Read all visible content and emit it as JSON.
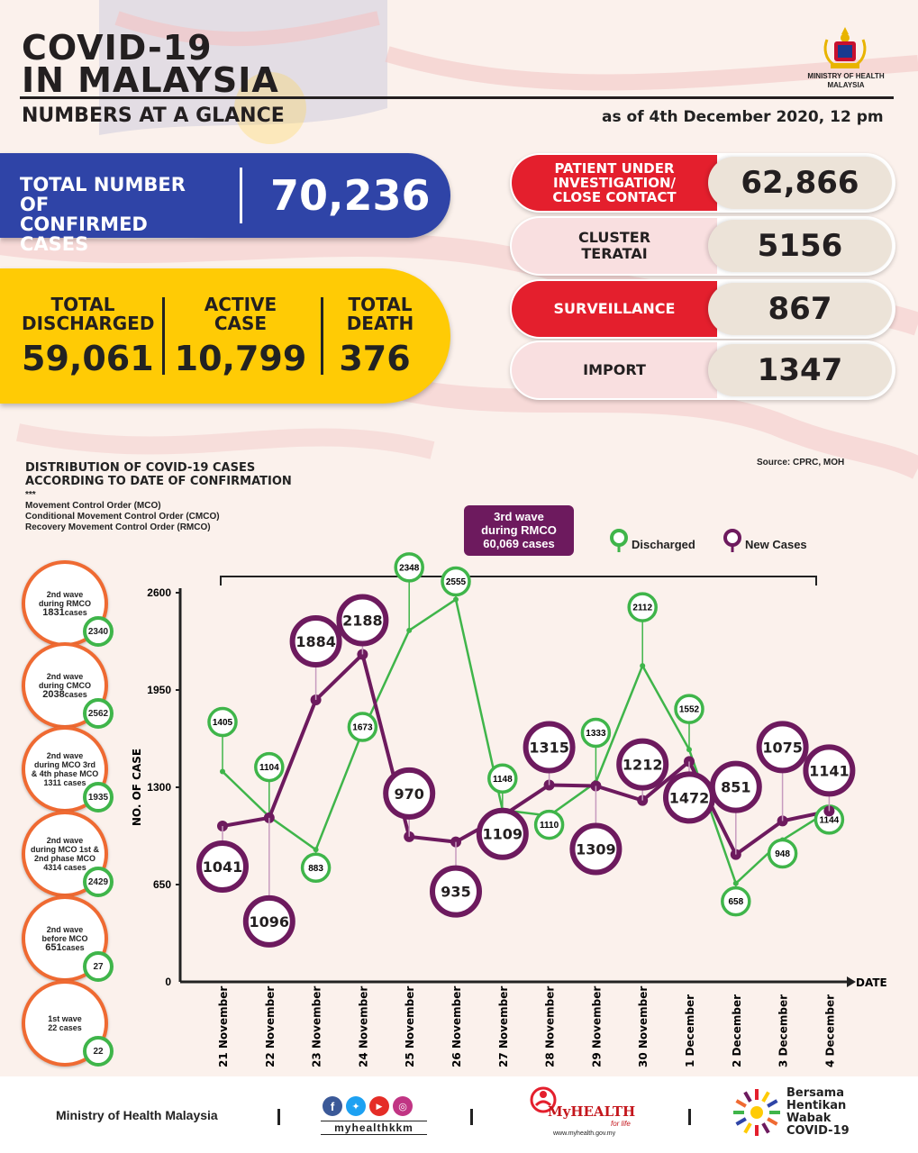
{
  "header": {
    "title_line1": "COVID-19",
    "title_line2": "IN MALAYSIA",
    "subtitle": "NUMBERS AT A GLANCE",
    "date": "as of 4th December 2020, 12 pm",
    "ministry_line1": "MINISTRY OF HEALTH",
    "ministry_line2": "MALAYSIA"
  },
  "totals": {
    "confirmed_label_1": "TOTAL NUMBER OF",
    "confirmed_label_2": "CONFIRMED CASES",
    "confirmed_value": "70,236",
    "discharged_label_1": "TOTAL",
    "discharged_label_2": "DISCHARGED",
    "discharged_value": "59,061",
    "active_label_1": "ACTIVE",
    "active_label_2": "CASE",
    "active_value": "10,799",
    "death_label_1": "TOTAL",
    "death_label_2": "DEATH",
    "death_value": "376"
  },
  "categories": [
    {
      "label_1": "PATIENT UNDER",
      "label_2": "INVESTIGATION/",
      "label_3": "CLOSE CONTACT",
      "value": "62,866"
    },
    {
      "label_1": "CLUSTER",
      "label_2": "TERATAI",
      "label_3": "",
      "value": "5156"
    },
    {
      "label_1": "SURVEILLANCE",
      "label_2": "",
      "label_3": "",
      "value": "867"
    },
    {
      "label_1": "IMPORT",
      "label_2": "",
      "label_3": "",
      "value": "1347"
    }
  ],
  "chart_section": {
    "title_1": "DISTRIBUTION OF COVID-19 CASES",
    "title_2": "ACCORDING TO DATE OF CONFIRMATION",
    "stars": "***",
    "note_1": "Movement Control Order (MCO)",
    "note_2": "Conditional Movement Control Order (CMCO)",
    "note_3": "Recovery Movement Control Order (RMCO)",
    "source": "Source: CPRC, MOH",
    "wave3_1": "3rd wave",
    "wave3_2": "during RMCO",
    "wave3_3": "60,069 cases",
    "legend_discharged": "Discharged",
    "legend_new": "New Cases"
  },
  "waves": [
    {
      "l1": "2nd wave",
      "l2": "during RMCO",
      "l3": "1831",
      "l3b": "cases",
      "l4": "",
      "badge": "2340"
    },
    {
      "l1": "2nd wave",
      "l2": "during CMCO",
      "l3": "2038",
      "l3b": "cases",
      "l4": "",
      "badge": "2562"
    },
    {
      "l1": "2nd wave",
      "l2": "during MCO 3rd",
      "l3": "& 4th phase MCO",
      "l3b": "",
      "l4": "1311 cases",
      "badge": "1935"
    },
    {
      "l1": "2nd wave",
      "l2": "during MCO 1st &",
      "l3": "2nd phase MCO",
      "l3b": "",
      "l4": "4314 cases",
      "badge": "2429"
    },
    {
      "l1": "2nd wave",
      "l2": "before MCO",
      "l3": "651",
      "l3b": "cases",
      "l4": "",
      "badge": "27"
    },
    {
      "l1": "1st wave",
      "l2": "22 cases",
      "l3": "",
      "l3b": "",
      "l4": "",
      "badge": "22"
    }
  ],
  "chart_data": {
    "type": "line",
    "categories": [
      "21 November",
      "22 November",
      "23 November",
      "24 November",
      "25 November",
      "26 November",
      "27 November",
      "28 November",
      "29 November",
      "30 November",
      "1 December",
      "2 December",
      "3 December",
      "4 December"
    ],
    "series": [
      {
        "name": "Discharged",
        "color": "#3fb54a",
        "values": [
          1405,
          1104,
          883,
          1673,
          2348,
          2555,
          1148,
          1110,
          1333,
          2112,
          1552,
          658,
          948,
          1144
        ]
      },
      {
        "name": "New Cases",
        "color": "#6d1a5e",
        "values": [
          1041,
          1096,
          1884,
          2188,
          970,
          935,
          1109,
          1315,
          1309,
          1212,
          1472,
          851,
          1075,
          1141
        ]
      }
    ],
    "ylabel": "NO. OF CASE",
    "xlabel": "DATE",
    "ylim": [
      0,
      2600
    ],
    "yticks": [
      0,
      650,
      1300,
      1950,
      2600
    ]
  },
  "footer": {
    "ministry": "Ministry of Health Malaysia",
    "social_handle": "myhealthkkm",
    "myhealth_brand": "MyHEALTH",
    "myhealth_tag": "for life",
    "myhealth_url": "www.myhealth.gov.my",
    "campaign_1": "Bersama",
    "campaign_2": "Hentikan",
    "campaign_3": "Wabak",
    "campaign_4": "COVID-19"
  },
  "colors": {
    "blue": "#2f44a7",
    "yellow": "#ffcb05",
    "red": "#e41f2d",
    "pink": "#f9dfe0",
    "beige": "#ece3d8",
    "green": "#3fb54a",
    "purple": "#6d1a5e",
    "orange": "#ef6a32"
  }
}
